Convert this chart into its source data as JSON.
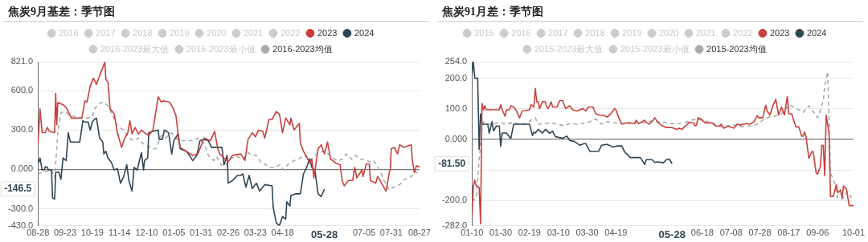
{
  "chart_data": [
    {
      "type": "line",
      "title": "焦炭9月基差：季节图",
      "legend": "top",
      "grid": "y",
      "marker": "none",
      "xlim": [
        "2023-08-28",
        "2024-08-27"
      ],
      "xticks": [
        {
          "value": "2023-08-28",
          "label": "08-28"
        },
        {
          "value": "2023-09-23",
          "label": "09-23"
        },
        {
          "value": "2023-10-19",
          "label": "10-19"
        },
        {
          "value": "2023-11-14",
          "label": "11-14"
        },
        {
          "value": "2023-12-10",
          "label": "12-10"
        },
        {
          "value": "2024-01-05",
          "label": "01-05"
        },
        {
          "value": "2024-01-31",
          "label": "01-31"
        },
        {
          "value": "2024-02-26",
          "label": "02-26"
        },
        {
          "value": "2024-03-23",
          "label": "03-23"
        },
        {
          "value": "2024-04-18",
          "label": "04-18"
        },
        {
          "value": "2024-07-05",
          "label": "07-05"
        },
        {
          "value": "2024-07-31",
          "label": "07-31"
        },
        {
          "value": "2024-08-27",
          "label": "08-27"
        }
      ],
      "ylim": [
        -430,
        821
      ],
      "yticks": [
        {
          "value": -430,
          "label": "-430.0"
        },
        {
          "value": -300,
          "label": "-300.0"
        },
        {
          "value": 0,
          "label": "0.000"
        },
        {
          "value": 300,
          "label": "300.0"
        },
        {
          "value": 600,
          "label": "600.0"
        },
        {
          "value": 821,
          "label": "821.0"
        }
      ],
      "annotations": [
        "-146.5",
        "05-28"
      ],
      "series": [
        {
          "name": "2016",
          "color": "#cccccc"
        },
        {
          "name": "2017",
          "color": "#cccccc"
        },
        {
          "name": "2018",
          "color": "#cccccc"
        },
        {
          "name": "2019",
          "color": "#cccccc"
        },
        {
          "name": "2020",
          "color": "#cccccc"
        },
        {
          "name": "2021",
          "color": "#cccccc"
        },
        {
          "name": "2022",
          "color": "#cccccc"
        },
        {
          "name": "2023",
          "color": "#c9403b",
          "line_style": "solid",
          "x": [
            "2023-08-28",
            "2023-08-30",
            "2023-09-01",
            "2023-09-04",
            "2023-09-06",
            "2023-09-08",
            "2023-09-13",
            "2023-09-14",
            "2023-09-15",
            "2023-09-16",
            "2023-09-21",
            "2023-09-24",
            "2023-09-29",
            "2023-10-09",
            "2023-10-12",
            "2023-10-14",
            "2023-10-17",
            "2023-10-20",
            "2023-10-23",
            "2023-10-26",
            "2023-10-29",
            "2023-10-31",
            "2023-11-01",
            "2023-11-03",
            "2023-11-05",
            "2023-11-09",
            "2023-11-12",
            "2023-11-16",
            "2023-11-19",
            "2023-11-22",
            "2023-11-24",
            "2023-11-26",
            "2023-11-29",
            "2023-12-02",
            "2023-12-05",
            "2023-12-08",
            "2023-12-12",
            "2023-12-16",
            "2023-12-18",
            "2023-12-21",
            "2023-12-24",
            "2023-12-26",
            "2024-01-01",
            "2024-01-04",
            "2024-01-07",
            "2024-01-09",
            "2024-01-11",
            "2024-01-17",
            "2024-01-23",
            "2024-01-28",
            "2024-02-03",
            "2024-02-09",
            "2024-02-13",
            "2024-02-16",
            "2024-02-18",
            "2024-02-22",
            "2024-02-26",
            "2024-03-01",
            "2024-03-09",
            "2024-03-13",
            "2024-03-16",
            "2024-03-20",
            "2024-03-23",
            "2024-03-26",
            "2024-03-30",
            "2024-04-01",
            "2024-04-05",
            "2024-04-08",
            "2024-04-12",
            "2024-04-15",
            "2024-04-18",
            "2024-04-21",
            "2024-04-25",
            "2024-04-26",
            "2024-04-29",
            "2024-05-04",
            "2024-05-05",
            "2024-05-08",
            "2024-05-11",
            "2024-05-14",
            "2024-05-16",
            "2024-05-18",
            "2024-05-19",
            "2024-05-22",
            "2024-05-25",
            "2024-05-28",
            "2024-05-31",
            "2024-06-03",
            "2024-06-05",
            "2024-06-08",
            "2024-06-12",
            "2024-06-14",
            "2024-06-16",
            "2024-06-20",
            "2024-06-24",
            "2024-06-26",
            "2024-06-28",
            "2024-07-03",
            "2024-07-04",
            "2024-07-07",
            "2024-07-10",
            "2024-07-11",
            "2024-07-16",
            "2024-07-18",
            "2024-07-21",
            "2024-07-26",
            "2024-07-29",
            "2024-07-30",
            "2024-07-31",
            "2024-08-03",
            "2024-08-06",
            "2024-08-08",
            "2024-08-12",
            "2024-08-19",
            "2024-08-20",
            "2024-08-22",
            "2024-08-24",
            "2024-08-27"
          ],
          "values": [
            188,
            462,
            280,
            280,
            320,
            290,
            280,
            580,
            340,
            509,
            493,
            472,
            391,
            391,
            523,
            513,
            634,
            695,
            649,
            715,
            776,
            817,
            685,
            665,
            462,
            422,
            280,
            168,
            239,
            280,
            371,
            270,
            320,
            270,
            300,
            280,
            259,
            300,
            401,
            553,
            513,
            523,
            513,
            472,
            411,
            280,
            168,
            138,
            107,
            118,
            239,
            219,
            290,
            158,
            118,
            87,
            57,
            107,
            118,
            67,
            229,
            280,
            249,
            300,
            290,
            239,
            381,
            381,
            442,
            422,
            280,
            391,
            340,
            391,
            300,
            351,
            199,
            138,
            97,
            47,
            77,
            -65,
            -4,
            158,
            188,
            118,
            209,
            77,
            67,
            47,
            36,
            -85,
            -126,
            -85,
            -85,
            16,
            -65,
            -4,
            -55,
            41,
            41,
            -85,
            -105,
            -55,
            -95,
            -166,
            -24,
            -4,
            158,
            168,
            118,
            188,
            168,
            188,
            77,
            -24,
            26,
            20
          ]
        },
        {
          "name": "2024",
          "color": "#2f4554",
          "line_style": "solid",
          "x": [
            "2023-08-28",
            "2023-08-29",
            "2023-08-30",
            "2023-09-01",
            "2023-09-03",
            "2023-09-04",
            "2023-09-06",
            "2023-09-07",
            "2023-09-10",
            "2023-09-11",
            "2023-09-13",
            "2023-09-14",
            "2023-09-17",
            "2023-09-19",
            "2023-09-21",
            "2023-09-24",
            "2023-09-26",
            "2023-09-28",
            "2023-10-07",
            "2023-10-10",
            "2023-10-12",
            "2023-10-15",
            "2023-10-17",
            "2023-10-19",
            "2023-10-21",
            "2023-10-23",
            "2023-10-26",
            "2023-10-29",
            "2023-10-30",
            "2023-11-01",
            "2023-11-03",
            "2023-11-06",
            "2023-11-09",
            "2023-11-12",
            "2023-11-15",
            "2023-11-18",
            "2023-11-21",
            "2023-11-23",
            "2023-11-26",
            "2023-11-28",
            "2023-12-01",
            "2023-12-05",
            "2023-12-07",
            "2023-12-08",
            "2023-12-11",
            "2023-12-12",
            "2023-12-16",
            "2023-12-21",
            "2023-12-22",
            "2023-12-25",
            "2023-12-27",
            "2023-12-31",
            "2024-01-03",
            "2024-01-05",
            "2024-01-09",
            "2024-01-11",
            "2024-01-17",
            "2024-01-20",
            "2024-01-23",
            "2024-01-27",
            "2024-01-30",
            "2024-02-03",
            "2024-02-07",
            "2024-02-10",
            "2024-02-20",
            "2024-02-22",
            "2024-02-25",
            "2024-02-26",
            "2024-03-01",
            "2024-03-06",
            "2024-03-09",
            "2024-03-11",
            "2024-03-14",
            "2024-03-17",
            "2024-03-20",
            "2024-03-24",
            "2024-03-27",
            "2024-04-01",
            "2024-04-08",
            "2024-04-09",
            "2024-04-12",
            "2024-04-15",
            "2024-04-18",
            "2024-04-21",
            "2024-04-22",
            "2024-04-25",
            "2024-04-26",
            "2024-05-01",
            "2024-05-05",
            "2024-05-08",
            "2024-05-11",
            "2024-05-14",
            "2024-05-16",
            "2024-05-19",
            "2024-05-22",
            "2024-05-25",
            "2024-05-28"
          ],
          "values": [
            77,
            57,
            87,
            -4,
            -4,
            20,
            16,
            -4,
            -4,
            -217,
            -227,
            -24,
            -20,
            -75,
            87,
            67,
            280,
            209,
            209,
            371,
            361,
            361,
            300,
            361,
            381,
            391,
            239,
            209,
            118,
            138,
            87,
            57,
            -4,
            6,
            -105,
            -55,
            36,
            -85,
            -166,
            16,
            -4,
            128,
            -4,
            67,
            87,
            280,
            290,
            300,
            229,
            229,
            300,
            280,
            118,
            219,
            270,
            158,
            138,
            107,
            67,
            107,
            219,
            229,
            219,
            168,
            168,
            36,
            107,
            -105,
            -85,
            -45,
            -45,
            -34,
            -136,
            -45,
            -146,
            -105,
            -166,
            -116,
            -126,
            -288,
            -409,
            -428,
            -359,
            -379,
            -247,
            -278,
            -197,
            -186,
            -186,
            -34,
            16,
            81,
            16,
            -14,
            -186,
            -207,
            -150
          ]
        },
        {
          "name": "2016-2023最大值",
          "color": "#cccccc"
        },
        {
          "name": "2016-2023最小值",
          "color": "#cccccc"
        },
        {
          "name": "2016-2023均值",
          "color": "#aaaaaa",
          "line_style": "dashed",
          "x": [
            "2023-08-28",
            "2023-09-10",
            "2023-09-13",
            "2023-09-16",
            "2023-09-19",
            "2023-09-23",
            "2023-09-27",
            "2023-10-03",
            "2023-10-09",
            "2023-10-14",
            "2023-10-19",
            "2023-10-21",
            "2023-10-26",
            "2023-10-30",
            "2023-11-03",
            "2023-11-08",
            "2023-11-12",
            "2023-11-18",
            "2023-11-23",
            "2023-11-28",
            "2023-12-02",
            "2023-12-06",
            "2023-12-11",
            "2023-12-15",
            "2023-12-19",
            "2023-12-24",
            "2023-12-28",
            "2024-01-03",
            "2024-01-07",
            "2024-01-11",
            "2024-01-17",
            "2024-01-23",
            "2024-01-28",
            "2024-02-03",
            "2024-02-07",
            "2024-02-12",
            "2024-02-15",
            "2024-02-19",
            "2024-02-23",
            "2024-02-29",
            "2024-03-06",
            "2024-03-11",
            "2024-03-16",
            "2024-03-20",
            "2024-03-24",
            "2024-03-29",
            "2024-04-02",
            "2024-04-05",
            "2024-04-09",
            "2024-04-12",
            "2024-04-15",
            "2024-04-19",
            "2024-04-23",
            "2024-04-29",
            "2024-05-05",
            "2024-05-09",
            "2024-05-14",
            "2024-05-18",
            "2024-05-22",
            "2024-05-28",
            "2024-06-01",
            "2024-06-05",
            "2024-06-10",
            "2024-06-14",
            "2024-06-18",
            "2024-06-23",
            "2024-06-27",
            "2024-07-01",
            "2024-07-06",
            "2024-07-10",
            "2024-07-14",
            "2024-07-20",
            "2024-07-24",
            "2024-07-29",
            "2024-08-02",
            "2024-08-08",
            "2024-08-13",
            "2024-08-19",
            "2024-08-23",
            "2024-08-27"
          ],
          "values": [
            -34,
            -4,
            -65,
            280,
            432,
            442,
            411,
            401,
            391,
            391,
            401,
            462,
            503,
            513,
            482,
            401,
            330,
            300,
            239,
            219,
            239,
            199,
            178,
            158,
            158,
            259,
            239,
            280,
            239,
            219,
            219,
            219,
            239,
            199,
            107,
            67,
            97,
            36,
            26,
            87,
            97,
            77,
            128,
            107,
            107,
            47,
            36,
            16,
            16,
            16,
            36,
            -4,
            36,
            67,
            87,
            107,
            67,
            97,
            128,
            138,
            118,
            87,
            67,
            77,
            118,
            77,
            107,
            77,
            77,
            57,
            67,
            -4,
            -85,
            -156,
            -136,
            -116,
            -75,
            -55,
            -14,
            -45
          ]
        }
      ]
    },
    {
      "type": "line",
      "title": "焦炭91月差：季节图",
      "legend": "top",
      "grid": "y",
      "marker": "none",
      "xlim": [
        "2024-01-10",
        "2024-10-01"
      ],
      "xticks": [
        {
          "value": "2024-01-10",
          "label": "01-10"
        },
        {
          "value": "2024-01-30",
          "label": "01-30"
        },
        {
          "value": "2024-02-19",
          "label": "02-19"
        },
        {
          "value": "2024-03-10",
          "label": "03-10"
        },
        {
          "value": "2024-03-30",
          "label": "03-30"
        },
        {
          "value": "2024-04-19",
          "label": "04-19"
        },
        {
          "value": "2024-06-18",
          "label": "06-18"
        },
        {
          "value": "2024-07-08",
          "label": "07-08"
        },
        {
          "value": "2024-07-28",
          "label": "07-28"
        },
        {
          "value": "2024-08-17",
          "label": "08-17"
        },
        {
          "value": "2024-09-06",
          "label": "09-06"
        },
        {
          "value": "2024-10-01",
          "label": "10-01"
        }
      ],
      "ylim": [
        -282,
        254
      ],
      "yticks": [
        {
          "value": -282,
          "label": "-282.0"
        },
        {
          "value": -200,
          "label": "-200.0"
        },
        {
          "value": -100,
          "label": null
        },
        {
          "value": 0,
          "label": "0.000"
        },
        {
          "value": 100,
          "label": "100.0"
        },
        {
          "value": 200,
          "label": "200.0"
        },
        {
          "value": 254,
          "label": "254.0"
        }
      ],
      "annotations": [
        "-81.50",
        "05-28"
      ],
      "series": [
        {
          "name": "2015",
          "color": "#cccccc"
        },
        {
          "name": "2016",
          "color": "#cccccc"
        },
        {
          "name": "2017",
          "color": "#cccccc"
        },
        {
          "name": "2018",
          "color": "#cccccc"
        },
        {
          "name": "2019",
          "color": "#cccccc"
        },
        {
          "name": "2020",
          "color": "#cccccc"
        },
        {
          "name": "2021",
          "color": "#cccccc"
        },
        {
          "name": "2022",
          "color": "#cccccc"
        },
        {
          "name": "2023",
          "color": "#c9403b",
          "line_style": "solid",
          "x": [
            "2024-01-10",
            "2024-01-11",
            "2024-01-12",
            "2024-01-13",
            "2024-01-15",
            "2024-01-16",
            "2024-01-17",
            "2024-01-18",
            "2024-01-19",
            "2024-01-20",
            "2024-01-29",
            "2024-01-30",
            "2024-01-31",
            "2024-02-02",
            "2024-02-03",
            "2024-02-05",
            "2024-02-06",
            "2024-02-08",
            "2024-02-10",
            "2024-02-12",
            "2024-02-14",
            "2024-02-19",
            "2024-02-20",
            "2024-02-22",
            "2024-02-23",
            "2024-02-24",
            "2024-02-25",
            "2024-02-26",
            "2024-02-28",
            "2024-03-01",
            "2024-03-02",
            "2024-03-03",
            "2024-03-05",
            "2024-03-06",
            "2024-03-09",
            "2024-03-11",
            "2024-03-13",
            "2024-03-15",
            "2024-03-18",
            "2024-03-20",
            "2024-03-23",
            "2024-03-25",
            "2024-03-27",
            "2024-03-29",
            "2024-03-31",
            "2024-04-03",
            "2024-04-05",
            "2024-04-07",
            "2024-04-11",
            "2024-04-13",
            "2024-04-16",
            "2024-04-18",
            "2024-04-19",
            "2024-04-21",
            "2024-04-23",
            "2024-04-26",
            "2024-04-29",
            "2024-05-02",
            "2024-05-03",
            "2024-05-05",
            "2024-05-09",
            "2024-05-10",
            "2024-05-12",
            "2024-05-14",
            "2024-05-16",
            "2024-05-18",
            "2024-05-21",
            "2024-05-24",
            "2024-05-28",
            "2024-05-31",
            "2024-06-02",
            "2024-06-04",
            "2024-06-05",
            "2024-06-07",
            "2024-06-09",
            "2024-06-12",
            "2024-06-13",
            "2024-06-14",
            "2024-06-15",
            "2024-06-17",
            "2024-06-20",
            "2024-06-25",
            "2024-06-27",
            "2024-06-30",
            "2024-07-01",
            "2024-07-03",
            "2024-07-06",
            "2024-07-10",
            "2024-07-12",
            "2024-07-14",
            "2024-07-17",
            "2024-07-19",
            "2024-07-21",
            "2024-07-24",
            "2024-07-26",
            "2024-07-27",
            "2024-07-30",
            "2024-08-01",
            "2024-08-02",
            "2024-08-04",
            "2024-08-06",
            "2024-08-08",
            "2024-08-10",
            "2024-08-12",
            "2024-08-14",
            "2024-08-16",
            "2024-08-17",
            "2024-08-19",
            "2024-08-22",
            "2024-08-24",
            "2024-08-26",
            "2024-08-27",
            "2024-08-28",
            "2024-08-29",
            "2024-08-31",
            "2024-09-02",
            "2024-09-03",
            "2024-09-05",
            "2024-09-06",
            "2024-09-08",
            "2024-09-09",
            "2024-09-10",
            "2024-09-11",
            "2024-09-12",
            "2024-09-14",
            "2024-09-15",
            "2024-09-17",
            "2024-09-19",
            "2024-09-20",
            "2024-09-22",
            "2024-09-23",
            "2024-09-24",
            "2024-09-26",
            "2024-09-28",
            "2024-10-01"
          ],
          "values": [
            -255,
            -152,
            -133,
            -152,
            -156,
            -276,
            118,
            97,
            110,
            97,
            97,
            114,
            97,
            76,
            97,
            97,
            110,
            106,
            93,
            71,
            93,
            97,
            114,
            106,
            167,
            123,
            123,
            101,
            124,
            123,
            106,
            101,
            123,
            106,
            106,
            127,
            127,
            101,
            110,
            97,
            93,
            97,
            101,
            93,
            106,
            106,
            84,
            80,
            78,
            73,
            87,
            101,
            97,
            71,
            50,
            54,
            54,
            52,
            63,
            52,
            63,
            56,
            50,
            58,
            71,
            56,
            45,
            39,
            39,
            33,
            37,
            33,
            39,
            47,
            56,
            54,
            44,
            47,
            71,
            67,
            54,
            54,
            44,
            44,
            50,
            37,
            44,
            37,
            50,
            47,
            50,
            52,
            50,
            58,
            78,
            71,
            71,
            112,
            93,
            80,
            110,
            131,
            80,
            106,
            80,
            140,
            84,
            84,
            41,
            41,
            11,
            11,
            24,
            9,
            -62,
            -40,
            -40,
            -109,
            -113,
            -88,
            -19,
            -19,
            -118,
            80,
            20,
            -186,
            -186,
            -148,
            -174,
            -165,
            -191,
            -152,
            -161,
            -216,
            -216
          ]
        },
        {
          "name": "2024",
          "color": "#2f4554",
          "line_style": "solid",
          "x": [
            "2024-01-10",
            "2024-01-11",
            "2024-01-12",
            "2024-01-14",
            "2024-01-15",
            "2024-01-16",
            "2024-01-17",
            "2024-01-21",
            "2024-01-22",
            "2024-01-24",
            "2024-01-25",
            "2024-01-27",
            "2024-01-29",
            "2024-01-30",
            "2024-01-31",
            "2024-02-03",
            "2024-02-06",
            "2024-02-08",
            "2024-02-19",
            "2024-02-21",
            "2024-02-22",
            "2024-02-23",
            "2024-02-25",
            "2024-02-28",
            "2024-03-01",
            "2024-03-04",
            "2024-03-06",
            "2024-03-08",
            "2024-03-13",
            "2024-03-16",
            "2024-03-18",
            "2024-03-21",
            "2024-03-25",
            "2024-03-27",
            "2024-03-29",
            "2024-04-01",
            "2024-04-07",
            "2024-04-09",
            "2024-04-13",
            "2024-04-17",
            "2024-04-20",
            "2024-04-23",
            "2024-04-25",
            "2024-04-29",
            "2024-05-06",
            "2024-05-09",
            "2024-05-10",
            "2024-05-14",
            "2024-05-16",
            "2024-05-18",
            "2024-05-22",
            "2024-05-24",
            "2024-05-26",
            "2024-05-28"
          ],
          "values": [
            213,
            252,
            200,
            200,
            -32,
            84,
            50,
            50,
            20,
            58,
            28,
            44,
            44,
            -23,
            21,
            21,
            3,
            50,
            50,
            13,
            24,
            21,
            33,
            21,
            33,
            20,
            27,
            9,
            4,
            11,
            -4,
            -6,
            -19,
            -15,
            -13,
            -39,
            -39,
            -19,
            -16,
            -25,
            -21,
            -21,
            -40,
            -59,
            -59,
            -82,
            -66,
            -66,
            -75,
            -73,
            -76,
            -66,
            -64,
            -79
          ]
        },
        {
          "name": "2015-2023最大值",
          "color": "#cccccc"
        },
        {
          "name": "2015-2023最小值",
          "color": "#cccccc"
        },
        {
          "name": "2015-2023均值",
          "color": "#aaaaaa",
          "line_style": "dashed",
          "x": [
            "2024-01-10",
            "2024-01-13",
            "2024-01-15",
            "2024-01-17",
            "2024-01-18",
            "2024-01-21",
            "2024-01-26",
            "2024-01-30",
            "2024-02-03",
            "2024-02-08",
            "2024-02-12",
            "2024-02-17",
            "2024-02-21",
            "2024-02-23",
            "2024-02-25",
            "2024-03-01",
            "2024-03-05",
            "2024-03-09",
            "2024-03-14",
            "2024-03-18",
            "2024-03-23",
            "2024-03-27",
            "2024-03-31",
            "2024-04-05",
            "2024-04-09",
            "2024-04-13",
            "2024-04-18",
            "2024-04-22",
            "2024-04-27",
            "2024-05-01",
            "2024-05-05",
            "2024-05-10",
            "2024-05-14",
            "2024-05-18",
            "2024-05-23",
            "2024-05-27",
            "2024-06-01",
            "2024-06-05",
            "2024-06-09",
            "2024-06-14",
            "2024-06-18",
            "2024-06-22",
            "2024-06-27",
            "2024-07-01",
            "2024-07-06",
            "2024-07-10",
            "2024-07-14",
            "2024-07-19",
            "2024-07-23",
            "2024-07-27",
            "2024-07-31",
            "2024-08-03",
            "2024-08-07",
            "2024-08-12",
            "2024-08-16",
            "2024-08-18",
            "2024-08-20",
            "2024-08-24",
            "2024-08-27",
            "2024-08-29",
            "2024-08-31",
            "2024-09-04",
            "2024-09-06",
            "2024-09-08",
            "2024-09-10",
            "2024-09-11",
            "2024-09-13",
            "2024-09-14",
            "2024-09-15",
            "2024-09-18",
            "2024-09-20",
            "2024-09-23",
            "2024-09-27",
            "2024-09-29",
            "2024-10-01"
          ],
          "values": [
            -203,
            -191,
            -66,
            37,
            58,
            50,
            52,
            56,
            50,
            56,
            50,
            52,
            67,
            71,
            50,
            52,
            54,
            50,
            45,
            52,
            50,
            52,
            56,
            67,
            50,
            58,
            54,
            52,
            52,
            56,
            52,
            56,
            61,
            58,
            56,
            52,
            52,
            54,
            61,
            67,
            63,
            58,
            50,
            41,
            44,
            47,
            41,
            44,
            44,
            52,
            67,
            73,
            76,
            84,
            106,
            114,
            106,
            97,
            88,
            101,
            110,
            84,
            71,
            97,
            127,
            174,
            221,
            71,
            -109,
            -143,
            -191,
            -195,
            -169,
            -186,
            -199
          ]
        }
      ]
    }
  ]
}
